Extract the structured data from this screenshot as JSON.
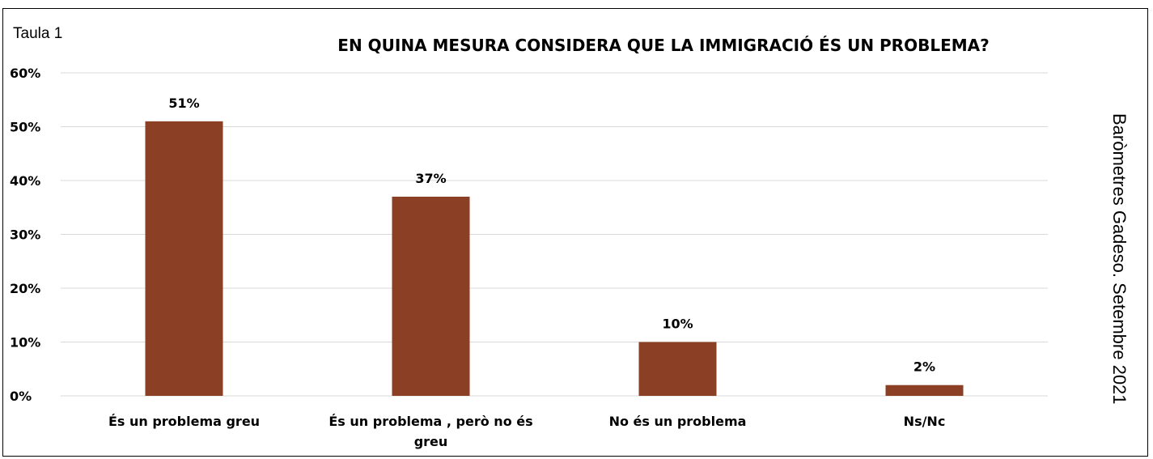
{
  "table_label": "Taula 1",
  "source_note": "Baròmetres Gadeso. Setembre 2021",
  "colors": {
    "bar": "#8B4025",
    "grid": "#D9D9D9",
    "frame": "#000000"
  },
  "chart_data": {
    "type": "bar",
    "title": "EN QUINA MESURA CONSIDERA QUE LA IMMIGRACIÓ ÉS UN PROBLEMA?",
    "categories": [
      [
        "És un problema greu"
      ],
      [
        "És un problema , però no és",
        "greu"
      ],
      [
        "No és un problema"
      ],
      [
        "Ns/Nc"
      ]
    ],
    "values": [
      51,
      37,
      10,
      2
    ],
    "value_labels": [
      "51%",
      "37%",
      "10%",
      "2%"
    ],
    "yticks": [
      "0%",
      "10%",
      "20%",
      "30%",
      "40%",
      "50%",
      "60%"
    ],
    "ylim": [
      0,
      60
    ],
    "grid": true,
    "legend": "none"
  }
}
